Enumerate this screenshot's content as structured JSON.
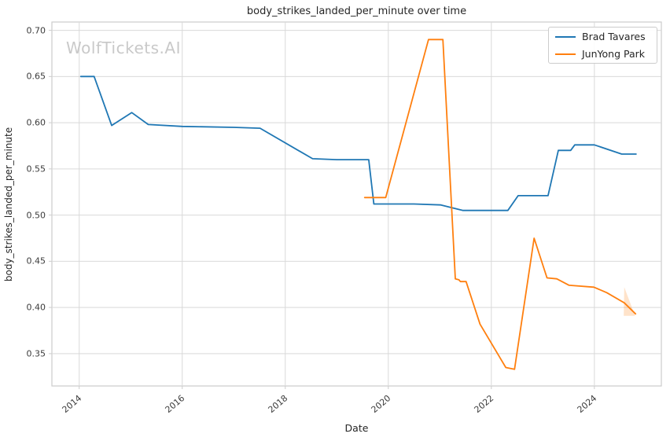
{
  "title": "body_strikes_landed_per_minute over time",
  "watermark": "WolfTickets.AI",
  "axes": {
    "x_label": "Date",
    "y_label": "body_strikes_landed_per_minute"
  },
  "legend": {
    "items": [
      {
        "label": "Brad Tavares",
        "color": "#1f77b4"
      },
      {
        "label": "JunYong Park",
        "color": "#ff7f0e"
      }
    ]
  },
  "colors": {
    "background": "#ffffff",
    "grid": "#d9d9d9",
    "spine": "#cccccc",
    "title_text": "#262626",
    "tick_text": "#3b3b3b",
    "watermark": "#c9c9c9",
    "series_blue": "#1f77b4",
    "series_orange": "#ff7f0e"
  },
  "chart_data": {
    "type": "line",
    "title": "body_strikes_landed_per_minute over time",
    "xlabel": "Date",
    "ylabel": "body_strikes_landed_per_minute",
    "xlim": [
      2013.47,
      2025.3
    ],
    "ylim": [
      0.315,
      0.709
    ],
    "x_ticks": [
      2014,
      2016,
      2018,
      2020,
      2022,
      2024
    ],
    "y_ticks": [
      0.35,
      0.4,
      0.45,
      0.5,
      0.55,
      0.6,
      0.65,
      0.7
    ],
    "grid": true,
    "legend_position": "upper right",
    "series": [
      {
        "name": "Brad Tavares",
        "color": "#1f77b4",
        "points": [
          [
            2014.03,
            0.65
          ],
          [
            2014.29,
            0.65
          ],
          [
            2014.63,
            0.597
          ],
          [
            2015.02,
            0.611
          ],
          [
            2015.34,
            0.598
          ],
          [
            2016.0,
            0.596
          ],
          [
            2017.0,
            0.595
          ],
          [
            2017.51,
            0.594
          ],
          [
            2018.53,
            0.561
          ],
          [
            2019.0,
            0.56
          ],
          [
            2019.62,
            0.56
          ],
          [
            2019.72,
            0.512
          ],
          [
            2020.5,
            0.512
          ],
          [
            2021.02,
            0.511
          ],
          [
            2021.45,
            0.505
          ],
          [
            2022.32,
            0.505
          ],
          [
            2022.52,
            0.521
          ],
          [
            2023.1,
            0.521
          ],
          [
            2023.3,
            0.57
          ],
          [
            2023.54,
            0.57
          ],
          [
            2023.62,
            0.576
          ],
          [
            2024.0,
            0.576
          ],
          [
            2024.53,
            0.566
          ],
          [
            2024.81,
            0.566
          ]
        ]
      },
      {
        "name": "JunYong Park",
        "color": "#ff7f0e",
        "points": [
          [
            2019.54,
            0.519
          ],
          [
            2019.95,
            0.519
          ],
          [
            2020.78,
            0.69
          ],
          [
            2021.06,
            0.69
          ],
          [
            2021.3,
            0.431
          ],
          [
            2021.37,
            0.43
          ],
          [
            2021.4,
            0.428
          ],
          [
            2021.51,
            0.428
          ],
          [
            2021.78,
            0.382
          ],
          [
            2022.28,
            0.335
          ],
          [
            2022.45,
            0.333
          ],
          [
            2022.83,
            0.475
          ],
          [
            2023.08,
            0.432
          ],
          [
            2023.27,
            0.431
          ],
          [
            2023.51,
            0.424
          ],
          [
            2023.99,
            0.422
          ],
          [
            2024.24,
            0.416
          ],
          [
            2024.58,
            0.405
          ],
          [
            2024.8,
            0.393
          ]
        ]
      }
    ],
    "annotations": [
      {
        "type": "shaded-wedge",
        "color": "#ff7f0e",
        "opacity": 0.22,
        "polygon": [
          [
            2024.58,
            0.422
          ],
          [
            2024.79,
            0.391
          ],
          [
            2024.57,
            0.391
          ]
        ]
      }
    ]
  }
}
